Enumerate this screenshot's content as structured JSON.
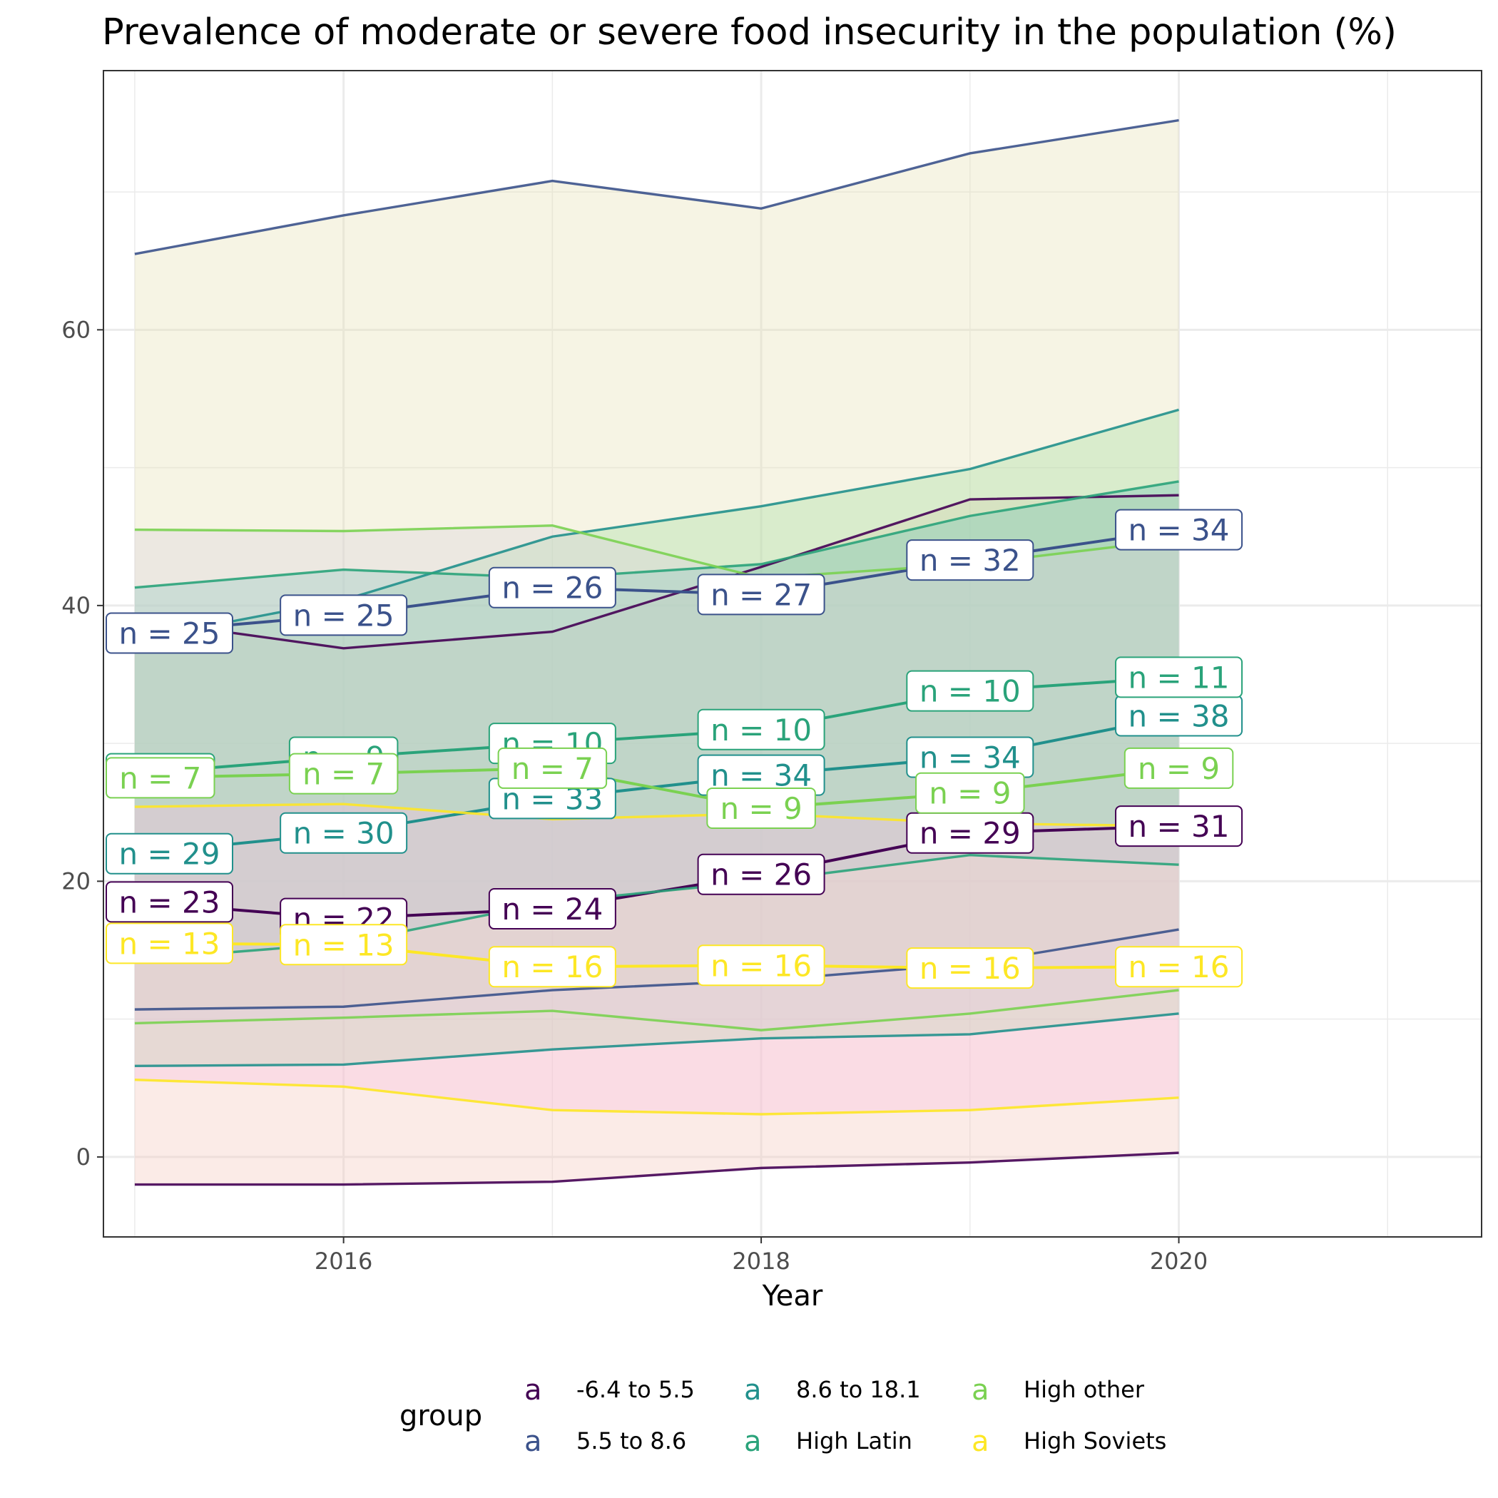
{
  "chart_data": {
    "type": "line",
    "title": "Prevalence of moderate or severe food insecurity in the population (%)",
    "xlabel": "Year",
    "ylabel": "",
    "xlim": [
      2014.85,
      2021.45
    ],
    "ylim": [
      -5.8,
      78.8
    ],
    "x_ticks": [
      2016,
      2018,
      2020
    ],
    "y_ticks": [
      0,
      20,
      40,
      60
    ],
    "grid": true,
    "legend": {
      "title": "group",
      "position": "bottom",
      "key_glyph": "a"
    },
    "x": [
      2015,
      2016,
      2017,
      2018,
      2019,
      2020
    ],
    "series": [
      {
        "name": "-6.4 to 5.5",
        "color": "#440154",
        "mean": [
          18.5,
          17.3,
          18.0,
          20.5,
          23.5,
          24.0
        ],
        "lower": [
          -2.0,
          -2.0,
          -1.8,
          -0.8,
          -0.4,
          0.3
        ],
        "upper": [
          39.0,
          36.9,
          38.1,
          42.8,
          47.7,
          48.0
        ],
        "n": [
          "n = 23",
          "n = 22",
          "n = 24",
          "n = 26",
          "n = 29",
          "n = 31"
        ],
        "fill": "#f4c7ba"
      },
      {
        "name": "5.5 to 8.6",
        "color": "#3b528b",
        "mean": [
          38.0,
          39.3,
          41.3,
          40.8,
          43.3,
          45.5
        ],
        "lower": [
          10.7,
          10.9,
          12.1,
          12.8,
          14.0,
          16.5
        ],
        "upper": [
          65.5,
          68.3,
          70.8,
          68.8,
          72.8,
          75.2
        ],
        "n": [
          "n = 25",
          "n = 25",
          "n = 26",
          "n = 27",
          "n = 32",
          "n = 34"
        ],
        "fill": "#e6e0b2"
      },
      {
        "name": "8.6 to 18.1",
        "color": "#21908c",
        "mean": [
          22.0,
          23.5,
          26.0,
          27.7,
          29.0,
          32.0
        ],
        "lower": [
          6.6,
          6.7,
          7.8,
          8.6,
          8.9,
          10.4
        ],
        "upper": [
          37.5,
          40.4,
          45.0,
          47.2,
          49.9,
          54.2
        ],
        "n": [
          "n = 29",
          "n = 30",
          "n = 33",
          "n = 34",
          "n = 34",
          "n = 38"
        ],
        "fill": "#a4dca0"
      },
      {
        "name": "High Latin",
        "color": "#2aa37a",
        "mean": [
          27.8,
          29.0,
          30.0,
          31.0,
          33.8,
          34.8
        ],
        "lower": [
          14.3,
          15.5,
          18.5,
          20.0,
          21.9,
          21.2
        ],
        "upper": [
          41.3,
          42.6,
          42.0,
          43.0,
          46.5,
          49.0
        ],
        "n": [
          "n = 7",
          "n = 9",
          "n = 10",
          "n = 10",
          "n = 10",
          "n = 11"
        ],
        "fill": "#6ec4b4"
      },
      {
        "name": "High other",
        "color": "#7ad151",
        "mean": [
          27.5,
          27.8,
          28.2,
          25.3,
          26.4,
          28.2
        ],
        "lower": [
          9.7,
          10.1,
          10.6,
          9.2,
          10.4,
          12.1
        ],
        "upper": [
          45.5,
          45.4,
          45.8,
          42.0,
          43.0,
          44.8
        ],
        "n": [
          "n = 7",
          "n = 7",
          "n = 7",
          "n = 9",
          "n = 9",
          "n = 9"
        ],
        "fill": "#d9d0dc"
      },
      {
        "name": "High Soviets",
        "color": "#fde725",
        "mean": [
          15.5,
          15.4,
          13.8,
          13.9,
          13.7,
          13.8
        ],
        "lower": [
          5.6,
          5.1,
          3.4,
          3.1,
          3.4,
          4.3
        ],
        "upper": [
          25.4,
          25.6,
          24.5,
          24.9,
          24.2,
          24.0
        ],
        "n": [
          "n = 13",
          "n = 13",
          "n = 16",
          "n = 16",
          "n = 16",
          "n = 16"
        ],
        "fill": "#f9bfe0"
      }
    ]
  }
}
